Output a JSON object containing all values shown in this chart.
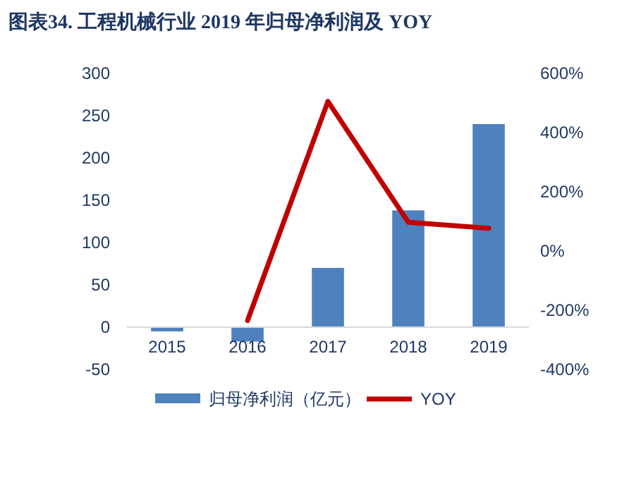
{
  "chart_data": {
    "type": "bar",
    "title": "图表34.  工程机械行业 2019 年归母净利润及 YOY",
    "categories": [
      "2015",
      "2016",
      "2017",
      "2018",
      "2019"
    ],
    "series": [
      {
        "name": "归母净利润（亿元）",
        "color": "#4f81bd",
        "values": [
          -5,
          -17,
          70,
          138,
          240
        ]
      },
      {
        "name": "YOY",
        "type": "line",
        "axis": "y2",
        "color": "#c00000",
        "values": [
          null,
          -235,
          505,
          97,
          77
        ]
      }
    ],
    "ylim": [
      -50,
      300
    ],
    "yticks": [
      -50,
      0,
      50,
      100,
      150,
      200,
      250,
      300
    ],
    "y2lim": [
      -400,
      600
    ],
    "y2ticks": [
      {
        "value": -400,
        "label": "-400%"
      },
      {
        "value": -200,
        "label": "-200%"
      },
      {
        "value": 0,
        "label": "0%"
      },
      {
        "value": 200,
        "label": "200%"
      },
      {
        "value": 400,
        "label": "400%"
      },
      {
        "value": 600,
        "label": "600%"
      }
    ],
    "legend": "bottom",
    "grid": false
  }
}
